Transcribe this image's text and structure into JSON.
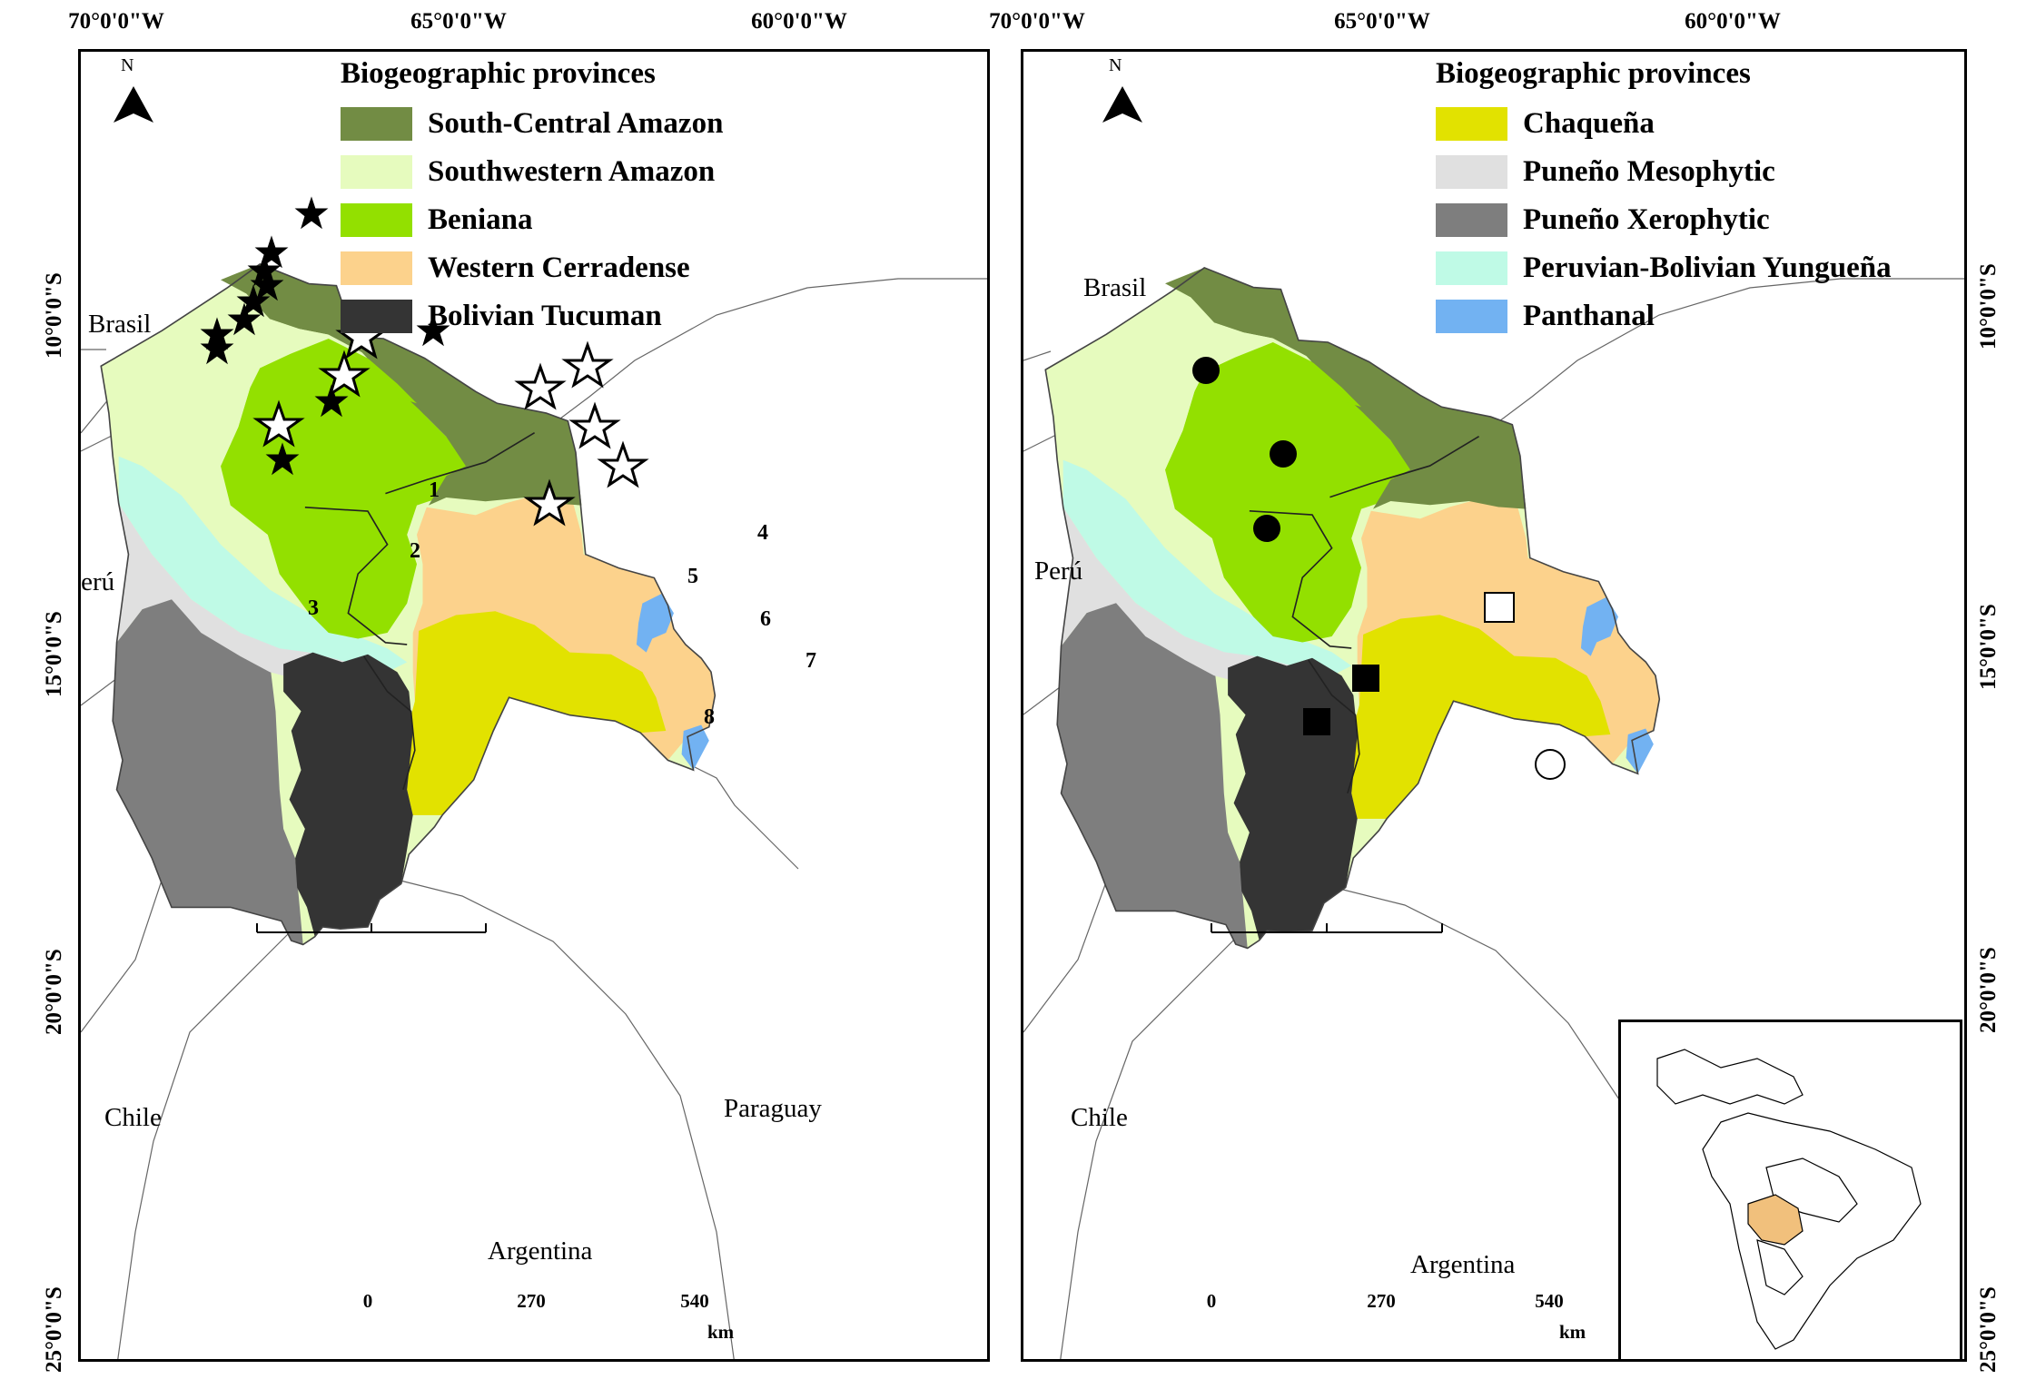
{
  "longitude_labels": [
    "70°0'0\"W",
    "65°0'0\"W",
    "60°0'0\"W"
  ],
  "latitude_labels": [
    "10°0'0\"S",
    "15°0'0\"S",
    "20°0'0\"S",
    "25°0'0\"S"
  ],
  "left_map": {
    "legend_title": "Biogeographic provinces",
    "legend_items": [
      {
        "label": "South-Central Amazon",
        "color": "#728c44"
      },
      {
        "label": "Southwestern Amazon",
        "color": "#e6fbbe"
      },
      {
        "label": "Beniana",
        "color": "#93e000"
      },
      {
        "label": "Western Cerradense",
        "color": "#fcd28c"
      },
      {
        "label": "Bolivian Tucuman",
        "color": "#343434"
      }
    ],
    "site_numbers": [
      "1",
      "2",
      "3",
      "4",
      "5",
      "6",
      "7",
      "8"
    ]
  },
  "right_map": {
    "legend_title": "Biogeographic provinces",
    "legend_items": [
      {
        "label": "Chaqueña",
        "color": "#e2e200"
      },
      {
        "label": "Puneño Mesophytic",
        "color": "#e0e0e0"
      },
      {
        "label": "Puneño Xerophytic",
        "color": "#7e7e7e"
      },
      {
        "label": "Peruvian-Bolivian Yungueña",
        "color": "#bffae6"
      },
      {
        "label": "Panthanal",
        "color": "#72b2f2"
      }
    ]
  },
  "countries": {
    "brasil": "Brasil",
    "peru": "Perú",
    "chile": "Chile",
    "paraguay": "Paraguay",
    "argentina": "Argentina"
  },
  "north_label": "N",
  "scale": {
    "ticks": [
      "0",
      "270",
      "540"
    ],
    "unit": "km"
  },
  "inset_highlight_color": "#f1c07c"
}
